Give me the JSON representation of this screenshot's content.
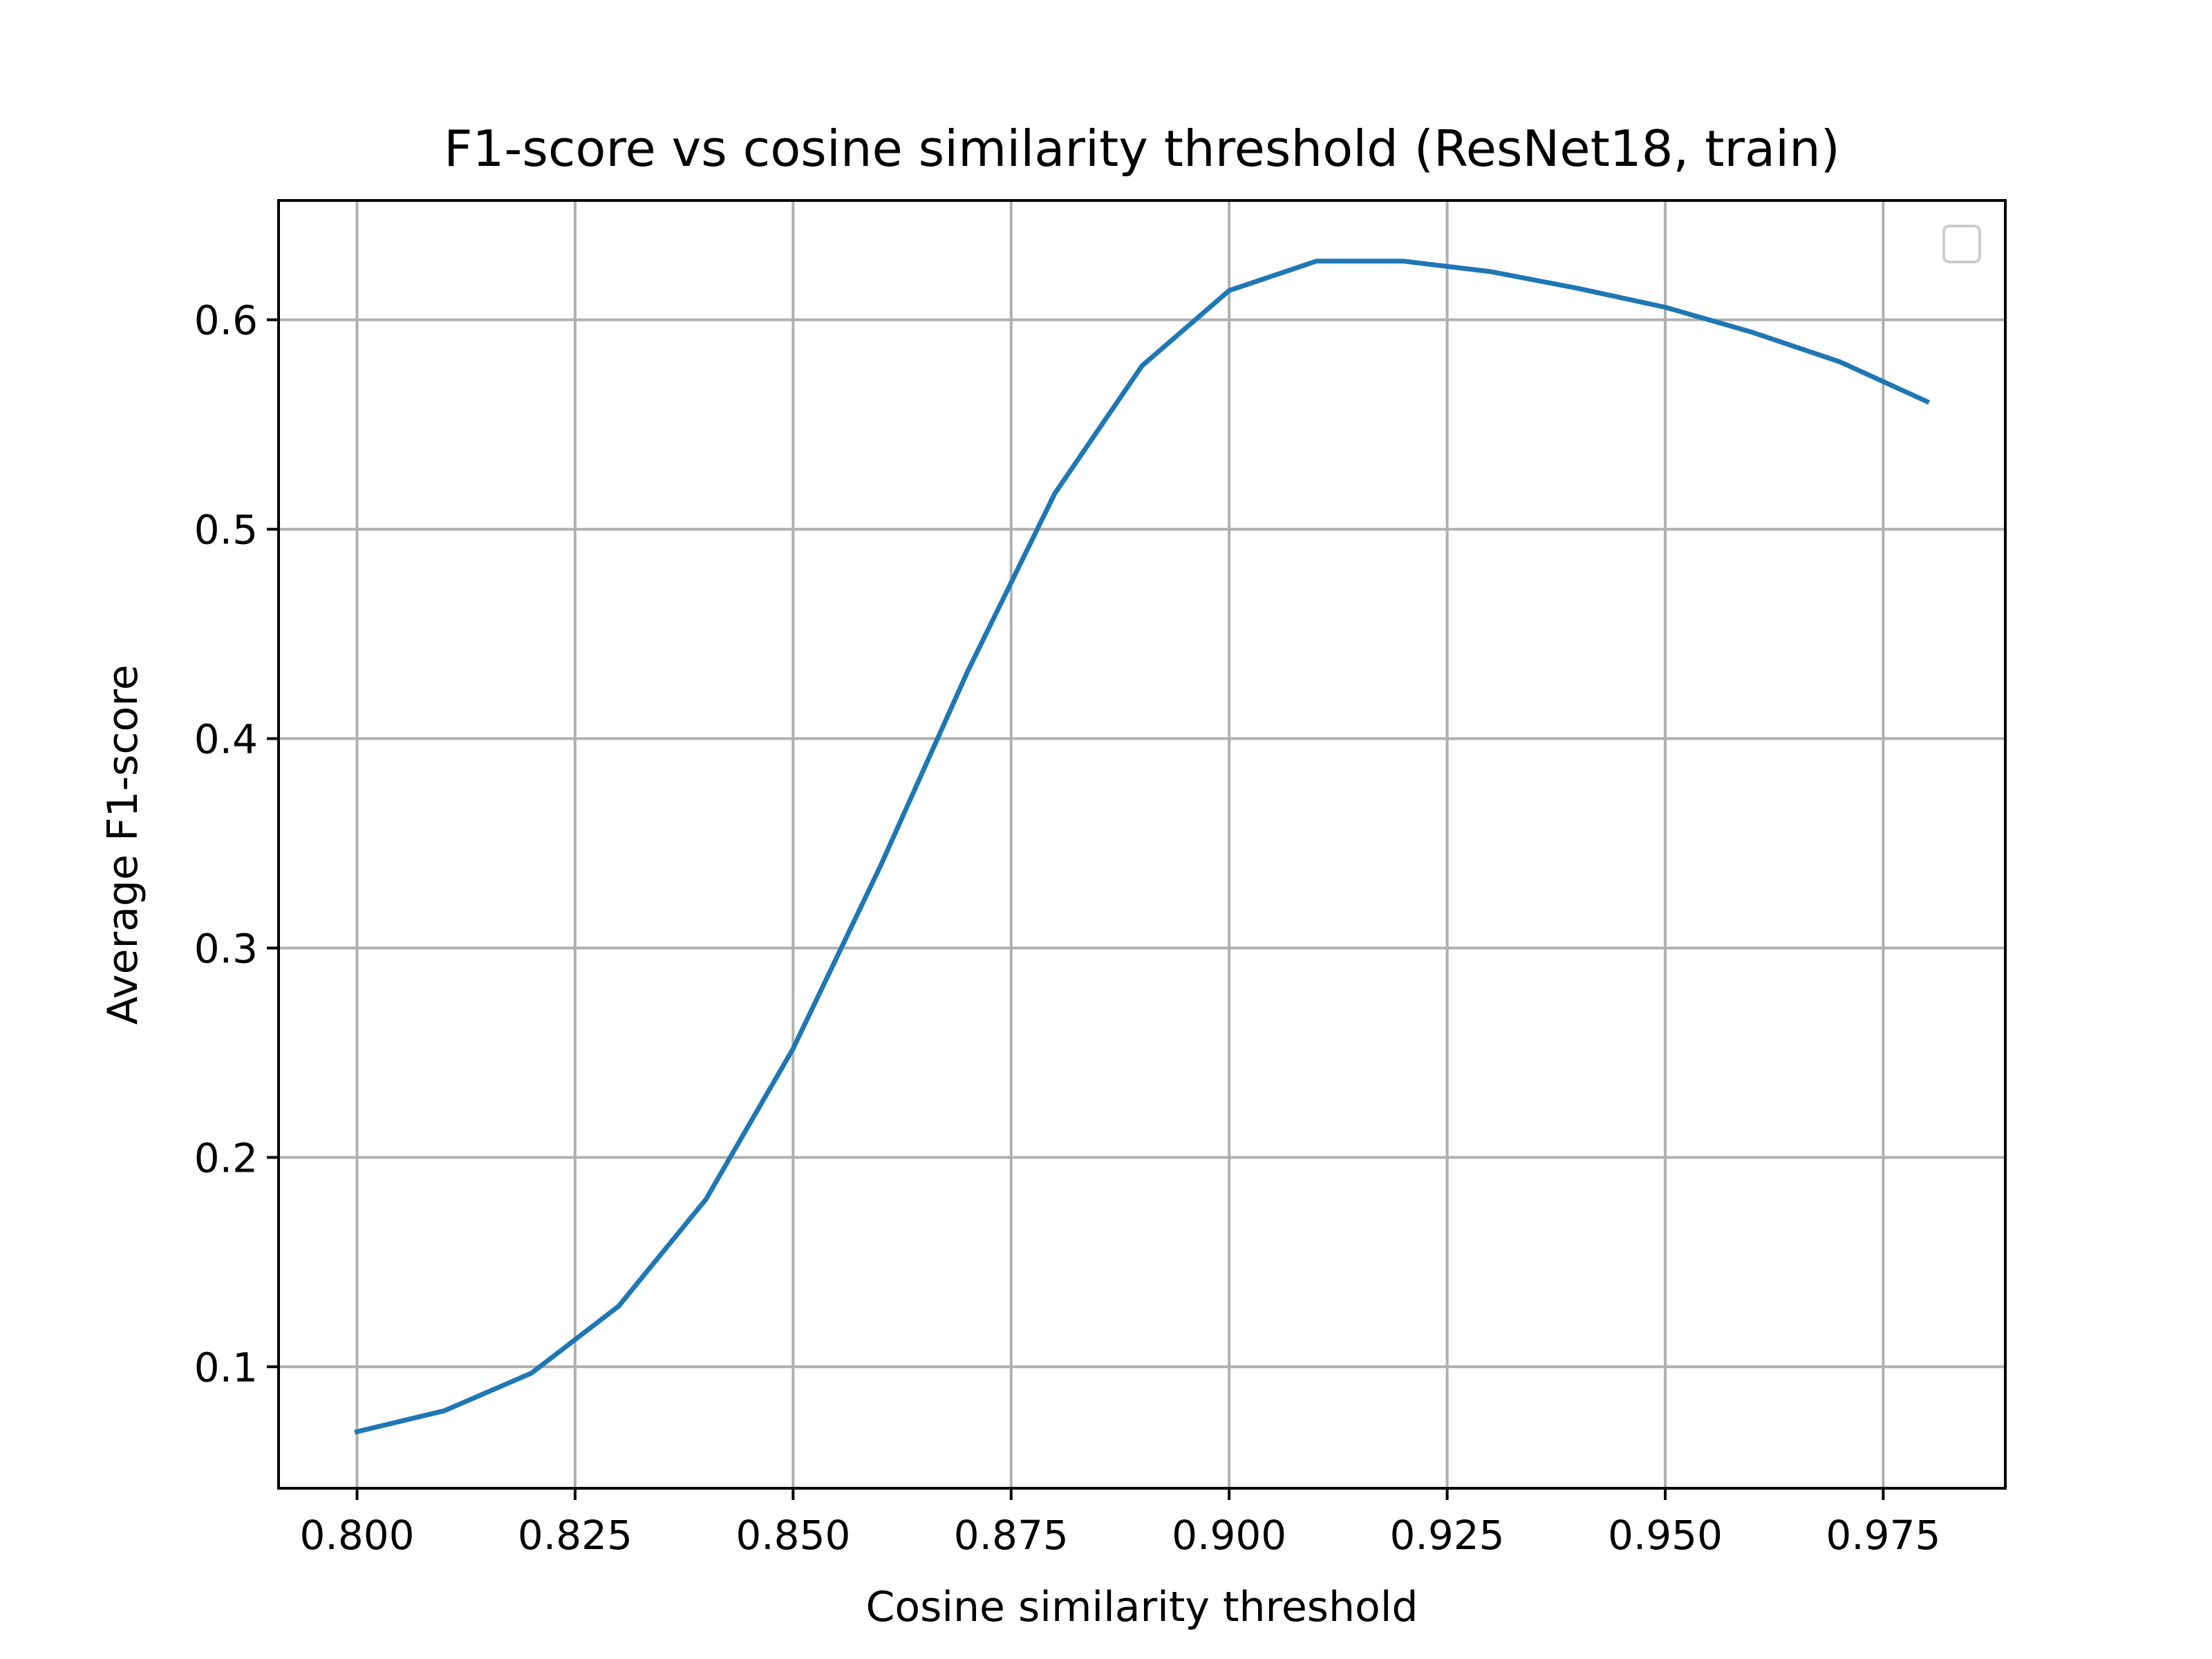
{
  "chart_data": {
    "type": "line",
    "title": "F1-score vs cosine similarity threshold (ResNet18, train)",
    "xlabel": "Cosine similarity threshold",
    "ylabel": "Average F1-score",
    "xlim": [
      0.791,
      0.989
    ],
    "ylim": [
      0.042,
      0.657
    ],
    "x_ticks": [
      0.8,
      0.825,
      0.85,
      0.875,
      0.9,
      0.925,
      0.95,
      0.975
    ],
    "x_tick_labels": [
      "0.800",
      "0.825",
      "0.850",
      "0.875",
      "0.900",
      "0.925",
      "0.950",
      "0.975"
    ],
    "y_ticks": [
      0.1,
      0.2,
      0.3,
      0.4,
      0.5,
      0.6
    ],
    "y_tick_labels": [
      "0.1",
      "0.2",
      "0.3",
      "0.4",
      "0.5",
      "0.6"
    ],
    "grid": true,
    "legend": {
      "location": "upper right",
      "entries": []
    },
    "series": [
      {
        "color": "#1f77b4",
        "x": [
          0.8,
          0.81,
          0.82,
          0.83,
          0.84,
          0.85,
          0.86,
          0.87,
          0.88,
          0.89,
          0.9,
          0.91,
          0.92,
          0.93,
          0.94,
          0.95,
          0.96,
          0.97,
          0.98
        ],
        "y": [
          0.069,
          0.079,
          0.097,
          0.129,
          0.18,
          0.252,
          0.339,
          0.432,
          0.517,
          0.578,
          0.614,
          0.628,
          0.628,
          0.623,
          0.615,
          0.606,
          0.594,
          0.58,
          0.561
        ]
      }
    ]
  }
}
